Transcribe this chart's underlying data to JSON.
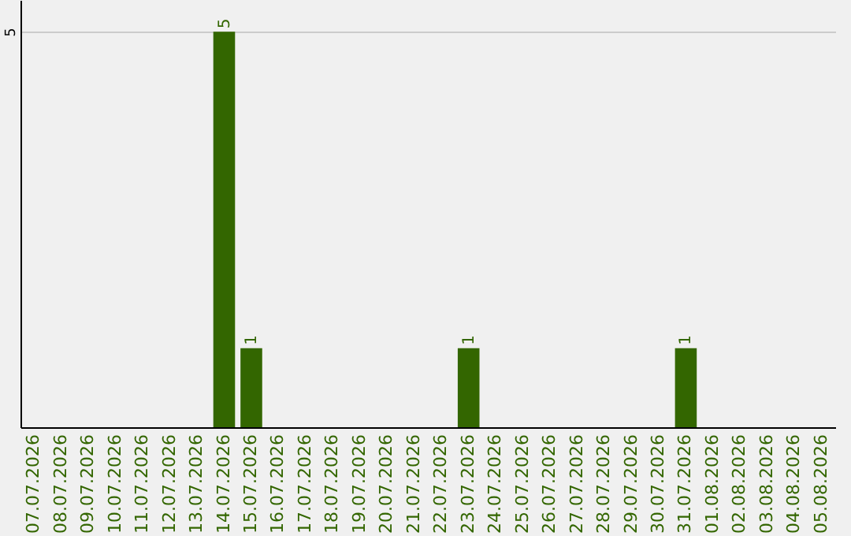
{
  "chart_data": {
    "type": "bar",
    "categories": [
      "07.07.2026",
      "08.07.2026",
      "09.07.2026",
      "10.07.2026",
      "11.07.2026",
      "12.07.2026",
      "13.07.2026",
      "14.07.2026",
      "15.07.2026",
      "16.07.2026",
      "17.07.2026",
      "18.07.2026",
      "19.07.2026",
      "20.07.2026",
      "21.07.2026",
      "22.07.2026",
      "23.07.2026",
      "24.07.2026",
      "25.07.2026",
      "26.07.2026",
      "27.07.2026",
      "28.07.2026",
      "29.07.2026",
      "30.07.2026",
      "31.07.2026",
      "01.08.2026",
      "02.08.2026",
      "03.08.2026",
      "04.08.2026",
      "05.08.2026"
    ],
    "values": [
      0,
      0,
      0,
      0,
      0,
      0,
      0,
      5,
      1,
      0,
      0,
      0,
      0,
      0,
      0,
      0,
      1,
      0,
      0,
      0,
      0,
      0,
      0,
      0,
      1,
      0,
      0,
      0,
      0,
      0
    ],
    "value_labels": [
      null,
      null,
      null,
      null,
      null,
      null,
      null,
      "5",
      "1",
      null,
      null,
      null,
      null,
      null,
      null,
      null,
      "1",
      null,
      null,
      null,
      null,
      null,
      null,
      null,
      "1",
      null,
      null,
      null,
      null,
      null
    ],
    "color": "#336600",
    "ylim": [
      0,
      5.4
    ],
    "yticks": [
      5
    ],
    "grid": "y"
  }
}
